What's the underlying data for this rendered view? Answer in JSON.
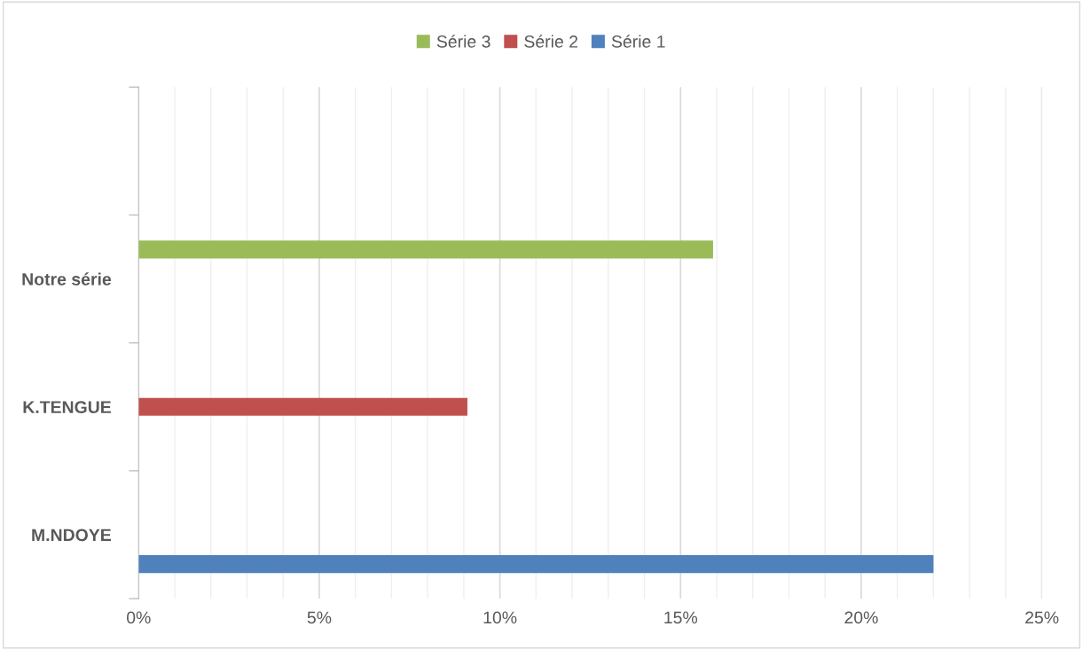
{
  "chart_data": {
    "type": "bar",
    "orientation": "horizontal",
    "categories": [
      null,
      "Notre série",
      "K.TENGUE",
      "M.NDOYE"
    ],
    "series": [
      {
        "name": "Série 1",
        "color": "#4f81bd",
        "values": [
          null,
          null,
          null,
          22
        ]
      },
      {
        "name": "Série 2",
        "color": "#c0504d",
        "values": [
          null,
          null,
          9.1,
          null
        ]
      },
      {
        "name": "Série 3",
        "color": "#9bbb59",
        "values": [
          null,
          15.9,
          null,
          null
        ]
      }
    ],
    "xlim": [
      0,
      25
    ],
    "xticks": [
      {
        "value": 0,
        "label": "0%"
      },
      {
        "value": 1,
        "label": null
      },
      {
        "value": 2,
        "label": null
      },
      {
        "value": 3,
        "label": null
      },
      {
        "value": 4,
        "label": null
      },
      {
        "value": 5,
        "label": "5%"
      },
      {
        "value": 6,
        "label": null
      },
      {
        "value": 7,
        "label": null
      },
      {
        "value": 8,
        "label": null
      },
      {
        "value": 9,
        "label": null
      },
      {
        "value": 10,
        "label": "10%"
      },
      {
        "value": 11,
        "label": null
      },
      {
        "value": 12,
        "label": null
      },
      {
        "value": 13,
        "label": null
      },
      {
        "value": 14,
        "label": null
      },
      {
        "value": 15,
        "label": "15%"
      },
      {
        "value": 16,
        "label": null
      },
      {
        "value": 17,
        "label": null
      },
      {
        "value": 18,
        "label": null
      },
      {
        "value": 19,
        "label": null
      },
      {
        "value": 20,
        "label": "20%"
      },
      {
        "value": 21,
        "label": null
      },
      {
        "value": 22,
        "label": null
      },
      {
        "value": 23,
        "label": null
      },
      {
        "value": 24,
        "label": null
      },
      {
        "value": 25,
        "label": "25%"
      }
    ],
    "grid": "x",
    "legend": "top"
  }
}
